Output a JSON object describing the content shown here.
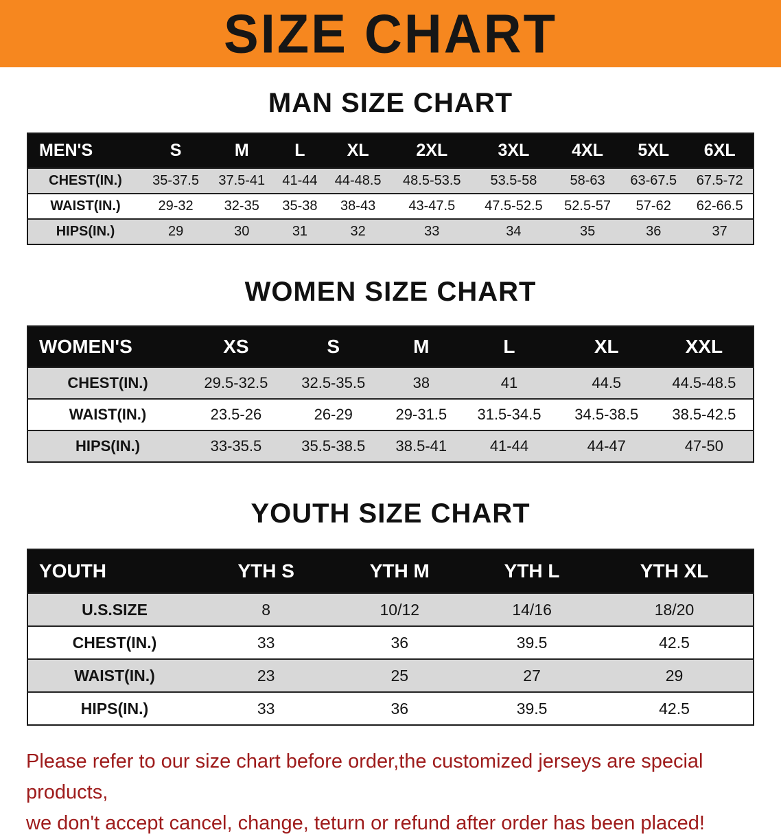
{
  "banner": {
    "title": "SIZE CHART"
  },
  "colors": {
    "banner_bg": "#f6871f",
    "table_header_bg": "#0d0d0d",
    "row_stripe": "#d8d8d8",
    "notice_text": "#9e1b1b"
  },
  "chart_data": [
    {
      "type": "table",
      "title": "MAN SIZE CHART",
      "columns": [
        "MEN'S",
        "S",
        "M",
        "L",
        "XL",
        "2XL",
        "3XL",
        "4XL",
        "5XL",
        "6XL"
      ],
      "rows": [
        {
          "label": "CHEST(IN.)",
          "values": [
            "35-37.5",
            "37.5-41",
            "41-44",
            "44-48.5",
            "48.5-53.5",
            "53.5-58",
            "58-63",
            "63-67.5",
            "67.5-72"
          ]
        },
        {
          "label": "WAIST(IN.)",
          "values": [
            "29-32",
            "32-35",
            "35-38",
            "38-43",
            "43-47.5",
            "47.5-52.5",
            "52.5-57",
            "57-62",
            "62-66.5"
          ]
        },
        {
          "label": "HIPS(IN.)",
          "values": [
            "29",
            "30",
            "31",
            "32",
            "33",
            "34",
            "35",
            "36",
            "37"
          ]
        }
      ]
    },
    {
      "type": "table",
      "title": "WOMEN SIZE CHART",
      "columns": [
        "WOMEN'S",
        "XS",
        "S",
        "M",
        "L",
        "XL",
        "XXL"
      ],
      "rows": [
        {
          "label": "CHEST(IN.)",
          "values": [
            "29.5-32.5",
            "32.5-35.5",
            "38",
            "41",
            "44.5",
            "44.5-48.5"
          ]
        },
        {
          "label": "WAIST(IN.)",
          "values": [
            "23.5-26",
            "26-29",
            "29-31.5",
            "31.5-34.5",
            "34.5-38.5",
            "38.5-42.5"
          ]
        },
        {
          "label": "HIPS(IN.)",
          "values": [
            "33-35.5",
            "35.5-38.5",
            "38.5-41",
            "41-44",
            "44-47",
            "47-50"
          ]
        }
      ]
    },
    {
      "type": "table",
      "title": "YOUTH SIZE CHART",
      "columns": [
        "YOUTH",
        "YTH S",
        "YTH M",
        "YTH L",
        "YTH XL"
      ],
      "rows": [
        {
          "label": "U.S.SIZE",
          "values": [
            "8",
            "10/12",
            "14/16",
            "18/20"
          ]
        },
        {
          "label": "CHEST(IN.)",
          "values": [
            "33",
            "36",
            "39.5",
            "42.5"
          ]
        },
        {
          "label": "WAIST(IN.)",
          "values": [
            "23",
            "25",
            "27",
            "29"
          ]
        },
        {
          "label": "HIPS(IN.)",
          "values": [
            "33",
            "36",
            "39.5",
            "42.5"
          ]
        }
      ]
    }
  ],
  "footer": {
    "line1": "Please refer to our size chart before order,the customized jerseys are special products,",
    "line2": "we don't accept cancel, change, teturn or refund after order has been placed!"
  }
}
